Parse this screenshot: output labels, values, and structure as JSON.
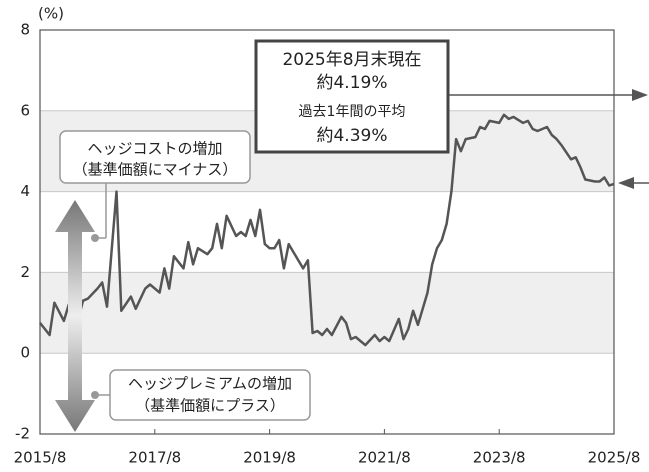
{
  "chart_data": {
    "type": "line",
    "y_unit": "(%)",
    "x": [
      "2015/8",
      "2015/10",
      "2015/11",
      "2016/1",
      "2016/2",
      "2016/4",
      "2016/5",
      "2016/6",
      "2016/8",
      "2016/9",
      "2016/10",
      "2016/12",
      "2017/1",
      "2017/3",
      "2017/4",
      "2017/6",
      "2017/7",
      "2017/9",
      "2017/10",
      "2017/11",
      "2017/12",
      "2018/2",
      "2018/3",
      "2018/4",
      "2018/5",
      "2018/7",
      "2018/8",
      "2018/9",
      "2018/10",
      "2018/11",
      "2019/1",
      "2019/2",
      "2019/3",
      "2019/4",
      "2019/5",
      "2019/6",
      "2019/7",
      "2019/8",
      "2019/9",
      "2019/10",
      "2019/11",
      "2019/12",
      "2020/1",
      "2020/3",
      "2020/4",
      "2020/5",
      "2020/6",
      "2020/7",
      "2020/8",
      "2020/9",
      "2020/11",
      "2020/12",
      "2021/1",
      "2021/2",
      "2021/3",
      "2021/4",
      "2021/6",
      "2021/7",
      "2021/8",
      "2021/9",
      "2021/11",
      "2021/12",
      "2022/1",
      "2022/2",
      "2022/3",
      "2022/4",
      "2022/5",
      "2022/6",
      "2022/7",
      "2022/8",
      "2022/9",
      "2022/10",
      "2022/11",
      "2022/12",
      "2023/1",
      "2023/3",
      "2023/4",
      "2023/5",
      "2023/6",
      "2023/8",
      "2023/9",
      "2023/10",
      "2023/11",
      "2024/1",
      "2024/2",
      "2024/3",
      "2024/4",
      "2024/6",
      "2024/7",
      "2024/8",
      "2024/9",
      "2024/11",
      "2024/12",
      "2025/1",
      "2025/2",
      "2025/4",
      "2025/5",
      "2025/6",
      "2025/7",
      "2025/8"
    ],
    "values": [
      0.75,
      0.45,
      1.25,
      0.8,
      1.2,
      0.85,
      1.3,
      1.35,
      1.6,
      1.75,
      1.15,
      4.0,
      1.05,
      1.4,
      1.1,
      1.6,
      1.7,
      1.5,
      2.1,
      1.6,
      2.4,
      2.1,
      2.75,
      2.2,
      2.6,
      2.45,
      2.6,
      3.2,
      2.6,
      3.4,
      2.9,
      3.0,
      2.9,
      3.3,
      2.9,
      3.55,
      2.7,
      2.6,
      2.6,
      2.8,
      2.1,
      2.7,
      2.5,
      2.1,
      2.3,
      0.5,
      0.55,
      0.45,
      0.6,
      0.45,
      0.9,
      0.75,
      0.35,
      0.4,
      0.3,
      0.2,
      0.45,
      0.3,
      0.4,
      0.3,
      0.85,
      0.35,
      0.6,
      1.05,
      0.7,
      1.1,
      1.5,
      2.2,
      2.6,
      2.8,
      3.2,
      4.0,
      5.3,
      5.0,
      5.3,
      5.35,
      5.6,
      5.55,
      5.75,
      5.7,
      5.9,
      5.8,
      5.85,
      5.7,
      5.75,
      5.55,
      5.5,
      5.6,
      5.4,
      5.3,
      5.15,
      4.8,
      4.85,
      4.6,
      4.3,
      4.25,
      4.25,
      4.35,
      4.15,
      4.19
    ],
    "color": "#555555",
    "xlim": [
      "2015/8",
      "2025/8"
    ],
    "xticks": [
      "2015/8",
      "2017/8",
      "2019/8",
      "2021/8",
      "2023/8",
      "2025/8"
    ],
    "ylim": [
      -2,
      8
    ],
    "yticks": [
      -2,
      0,
      2,
      4,
      6,
      8
    ],
    "grid": true,
    "annotations": {
      "current_date": "2025年8月末現在",
      "current_value": "約4.19%",
      "average_label": "過去1年間の平均",
      "average_value": "約4.39%",
      "cost_up": "ヘッジコストの増加",
      "cost_up_note": "（基準価額にマイナス）",
      "premium_up": "ヘッジプレミアムの増加",
      "premium_up_note": "（基準価額にプラス）"
    }
  }
}
